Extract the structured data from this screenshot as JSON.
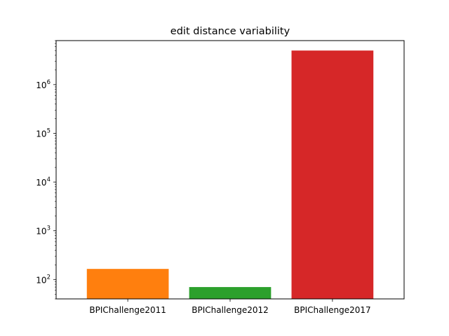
{
  "chart_data": {
    "type": "bar",
    "title": "edit distance variability",
    "xlabel": "",
    "ylabel": "",
    "yscale": "log",
    "ylim": [
      40,
      8000000
    ],
    "categories": [
      "BPIChallenge2011",
      "BPIChallenge2012",
      "BPIChallenge2017"
    ],
    "values": [
      165,
      70,
      5000000
    ],
    "colors": [
      "#ff7f0e",
      "#2ca02c",
      "#d62728"
    ],
    "ytick_labels": [
      {
        "base": "10",
        "exp": "2",
        "value": 100
      },
      {
        "base": "10",
        "exp": "3",
        "value": 1000
      },
      {
        "base": "10",
        "exp": "4",
        "value": 10000
      },
      {
        "base": "10",
        "exp": "5",
        "value": 100000
      },
      {
        "base": "10",
        "exp": "6",
        "value": 1000000
      }
    ],
    "grid": false,
    "legend": "none"
  }
}
